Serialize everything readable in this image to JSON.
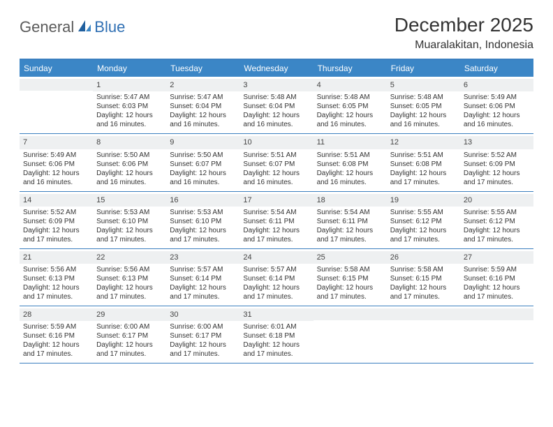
{
  "brand": {
    "part1": "General",
    "part2": "Blue"
  },
  "title": "December 2025",
  "location": "Muaralakitan, Indonesia",
  "colors": {
    "header_bg": "#3b86c6",
    "border": "#3b7fbf",
    "daynum_bg": "#eef0f1",
    "text": "#333333",
    "logo_gray": "#5a5a5a",
    "logo_blue": "#2f6fb3"
  },
  "day_names": [
    "Sunday",
    "Monday",
    "Tuesday",
    "Wednesday",
    "Thursday",
    "Friday",
    "Saturday"
  ],
  "weeks": [
    [
      {
        "n": "",
        "sr": "",
        "ss": "",
        "dl": ""
      },
      {
        "n": "1",
        "sr": "Sunrise: 5:47 AM",
        "ss": "Sunset: 6:03 PM",
        "dl": "Daylight: 12 hours and 16 minutes."
      },
      {
        "n": "2",
        "sr": "Sunrise: 5:47 AM",
        "ss": "Sunset: 6:04 PM",
        "dl": "Daylight: 12 hours and 16 minutes."
      },
      {
        "n": "3",
        "sr": "Sunrise: 5:48 AM",
        "ss": "Sunset: 6:04 PM",
        "dl": "Daylight: 12 hours and 16 minutes."
      },
      {
        "n": "4",
        "sr": "Sunrise: 5:48 AM",
        "ss": "Sunset: 6:05 PM",
        "dl": "Daylight: 12 hours and 16 minutes."
      },
      {
        "n": "5",
        "sr": "Sunrise: 5:48 AM",
        "ss": "Sunset: 6:05 PM",
        "dl": "Daylight: 12 hours and 16 minutes."
      },
      {
        "n": "6",
        "sr": "Sunrise: 5:49 AM",
        "ss": "Sunset: 6:06 PM",
        "dl": "Daylight: 12 hours and 16 minutes."
      }
    ],
    [
      {
        "n": "7",
        "sr": "Sunrise: 5:49 AM",
        "ss": "Sunset: 6:06 PM",
        "dl": "Daylight: 12 hours and 16 minutes."
      },
      {
        "n": "8",
        "sr": "Sunrise: 5:50 AM",
        "ss": "Sunset: 6:06 PM",
        "dl": "Daylight: 12 hours and 16 minutes."
      },
      {
        "n": "9",
        "sr": "Sunrise: 5:50 AM",
        "ss": "Sunset: 6:07 PM",
        "dl": "Daylight: 12 hours and 16 minutes."
      },
      {
        "n": "10",
        "sr": "Sunrise: 5:51 AM",
        "ss": "Sunset: 6:07 PM",
        "dl": "Daylight: 12 hours and 16 minutes."
      },
      {
        "n": "11",
        "sr": "Sunrise: 5:51 AM",
        "ss": "Sunset: 6:08 PM",
        "dl": "Daylight: 12 hours and 16 minutes."
      },
      {
        "n": "12",
        "sr": "Sunrise: 5:51 AM",
        "ss": "Sunset: 6:08 PM",
        "dl": "Daylight: 12 hours and 17 minutes."
      },
      {
        "n": "13",
        "sr": "Sunrise: 5:52 AM",
        "ss": "Sunset: 6:09 PM",
        "dl": "Daylight: 12 hours and 17 minutes."
      }
    ],
    [
      {
        "n": "14",
        "sr": "Sunrise: 5:52 AM",
        "ss": "Sunset: 6:09 PM",
        "dl": "Daylight: 12 hours and 17 minutes."
      },
      {
        "n": "15",
        "sr": "Sunrise: 5:53 AM",
        "ss": "Sunset: 6:10 PM",
        "dl": "Daylight: 12 hours and 17 minutes."
      },
      {
        "n": "16",
        "sr": "Sunrise: 5:53 AM",
        "ss": "Sunset: 6:10 PM",
        "dl": "Daylight: 12 hours and 17 minutes."
      },
      {
        "n": "17",
        "sr": "Sunrise: 5:54 AM",
        "ss": "Sunset: 6:11 PM",
        "dl": "Daylight: 12 hours and 17 minutes."
      },
      {
        "n": "18",
        "sr": "Sunrise: 5:54 AM",
        "ss": "Sunset: 6:11 PM",
        "dl": "Daylight: 12 hours and 17 minutes."
      },
      {
        "n": "19",
        "sr": "Sunrise: 5:55 AM",
        "ss": "Sunset: 6:12 PM",
        "dl": "Daylight: 12 hours and 17 minutes."
      },
      {
        "n": "20",
        "sr": "Sunrise: 5:55 AM",
        "ss": "Sunset: 6:12 PM",
        "dl": "Daylight: 12 hours and 17 minutes."
      }
    ],
    [
      {
        "n": "21",
        "sr": "Sunrise: 5:56 AM",
        "ss": "Sunset: 6:13 PM",
        "dl": "Daylight: 12 hours and 17 minutes."
      },
      {
        "n": "22",
        "sr": "Sunrise: 5:56 AM",
        "ss": "Sunset: 6:13 PM",
        "dl": "Daylight: 12 hours and 17 minutes."
      },
      {
        "n": "23",
        "sr": "Sunrise: 5:57 AM",
        "ss": "Sunset: 6:14 PM",
        "dl": "Daylight: 12 hours and 17 minutes."
      },
      {
        "n": "24",
        "sr": "Sunrise: 5:57 AM",
        "ss": "Sunset: 6:14 PM",
        "dl": "Daylight: 12 hours and 17 minutes."
      },
      {
        "n": "25",
        "sr": "Sunrise: 5:58 AM",
        "ss": "Sunset: 6:15 PM",
        "dl": "Daylight: 12 hours and 17 minutes."
      },
      {
        "n": "26",
        "sr": "Sunrise: 5:58 AM",
        "ss": "Sunset: 6:15 PM",
        "dl": "Daylight: 12 hours and 17 minutes."
      },
      {
        "n": "27",
        "sr": "Sunrise: 5:59 AM",
        "ss": "Sunset: 6:16 PM",
        "dl": "Daylight: 12 hours and 17 minutes."
      }
    ],
    [
      {
        "n": "28",
        "sr": "Sunrise: 5:59 AM",
        "ss": "Sunset: 6:16 PM",
        "dl": "Daylight: 12 hours and 17 minutes."
      },
      {
        "n": "29",
        "sr": "Sunrise: 6:00 AM",
        "ss": "Sunset: 6:17 PM",
        "dl": "Daylight: 12 hours and 17 minutes."
      },
      {
        "n": "30",
        "sr": "Sunrise: 6:00 AM",
        "ss": "Sunset: 6:17 PM",
        "dl": "Daylight: 12 hours and 17 minutes."
      },
      {
        "n": "31",
        "sr": "Sunrise: 6:01 AM",
        "ss": "Sunset: 6:18 PM",
        "dl": "Daylight: 12 hours and 17 minutes."
      },
      {
        "n": "",
        "sr": "",
        "ss": "",
        "dl": ""
      },
      {
        "n": "",
        "sr": "",
        "ss": "",
        "dl": ""
      },
      {
        "n": "",
        "sr": "",
        "ss": "",
        "dl": ""
      }
    ]
  ]
}
